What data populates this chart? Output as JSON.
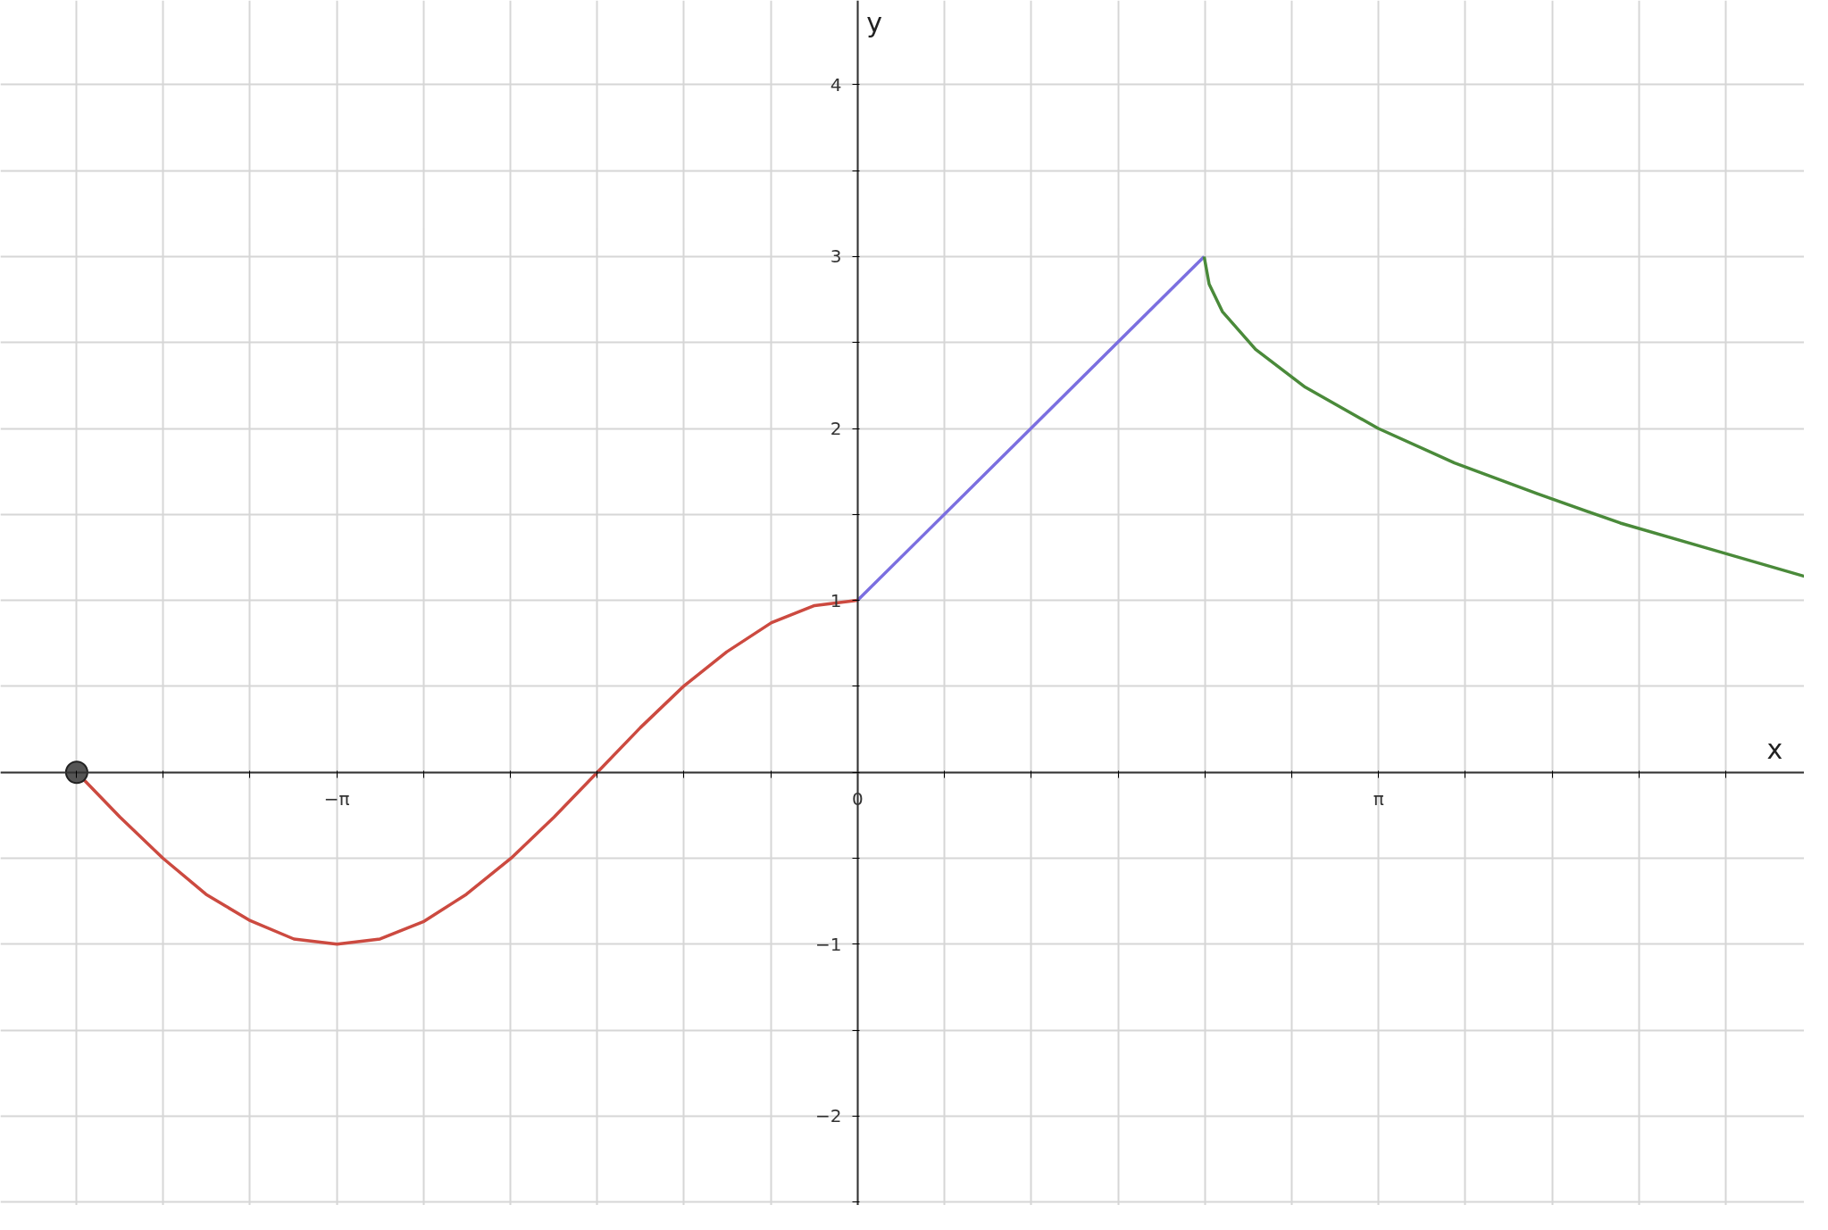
{
  "chart_data": {
    "type": "line",
    "xlabel": "x",
    "ylabel": "y",
    "xlim": [
      -5.17,
      5.71
    ],
    "ylim": [
      -2.52,
      4.49
    ],
    "xticks": [
      {
        "value": -4.712,
        "label": null
      },
      {
        "value": -4.189,
        "label": null
      },
      {
        "value": -3.665,
        "label": null
      },
      {
        "value": -3.1416,
        "label": "−π"
      },
      {
        "value": -2.618,
        "label": null
      },
      {
        "value": -2.094,
        "label": null
      },
      {
        "value": -1.571,
        "label": null
      },
      {
        "value": -1.047,
        "label": null
      },
      {
        "value": -0.524,
        "label": null
      },
      0,
      {
        "value": 0.524,
        "label": null
      },
      {
        "value": 1.047,
        "label": null
      },
      {
        "value": 1.571,
        "label": null
      },
      {
        "value": 2.094,
        "label": null
      },
      {
        "value": 2.618,
        "label": null
      },
      {
        "value": 3.1416,
        "label": "π"
      },
      {
        "value": 3.665,
        "label": null
      },
      {
        "value": 4.189,
        "label": null
      },
      {
        "value": 4.712,
        "label": null
      },
      {
        "value": 5.236,
        "label": null
      }
    ],
    "yticks": [
      {
        "value": -2.5,
        "label": null
      },
      {
        "value": -2,
        "label": "−2"
      },
      {
        "value": -1.5,
        "label": null
      },
      {
        "value": -1,
        "label": "−1"
      },
      {
        "value": -0.5,
        "label": null
      },
      {
        "value": 0,
        "label": null
      },
      {
        "value": 0.5,
        "label": null
      },
      1,
      {
        "value": 1.5,
        "label": null
      },
      2,
      {
        "value": 2.5,
        "label": null
      },
      3,
      {
        "value": 3.5,
        "label": null
      },
      4
    ],
    "grid": true,
    "line_style": "solid",
    "series": [
      {
        "color": "#cc4a40",
        "x": [
          -4.71,
          -4.45,
          -4.19,
          -3.93,
          -3.67,
          -3.4,
          -3.14,
          -2.88,
          -2.62,
          -2.36,
          -2.09,
          -1.83,
          -1.57,
          -1.31,
          -1.05,
          -0.79,
          -0.52,
          -0.26,
          0
        ],
        "values": [
          0,
          -0.26,
          -0.5,
          -0.71,
          -0.86,
          -0.97,
          -1,
          -0.97,
          -0.87,
          -0.71,
          -0.5,
          -0.26,
          0,
          0.26,
          0.5,
          0.7,
          0.87,
          0.97,
          1
        ]
      },
      {
        "color": "#7b6fe0",
        "x": [
          0,
          2.09
        ],
        "values": [
          1,
          3
        ]
      },
      {
        "color": "#4a8a3a",
        "x": [
          2.09,
          2.12,
          2.2,
          2.4,
          2.7,
          3.14,
          3.6,
          4.1,
          4.6,
          5.1,
          5.71
        ],
        "values": [
          3,
          2.84,
          2.68,
          2.46,
          2.24,
          2.0,
          1.8,
          1.62,
          1.45,
          1.31,
          1.14
        ]
      },
      {
        "type": "scatter",
        "color": "#555555",
        "x": [
          -4.71
        ],
        "values": [
          0
        ]
      }
    ]
  }
}
